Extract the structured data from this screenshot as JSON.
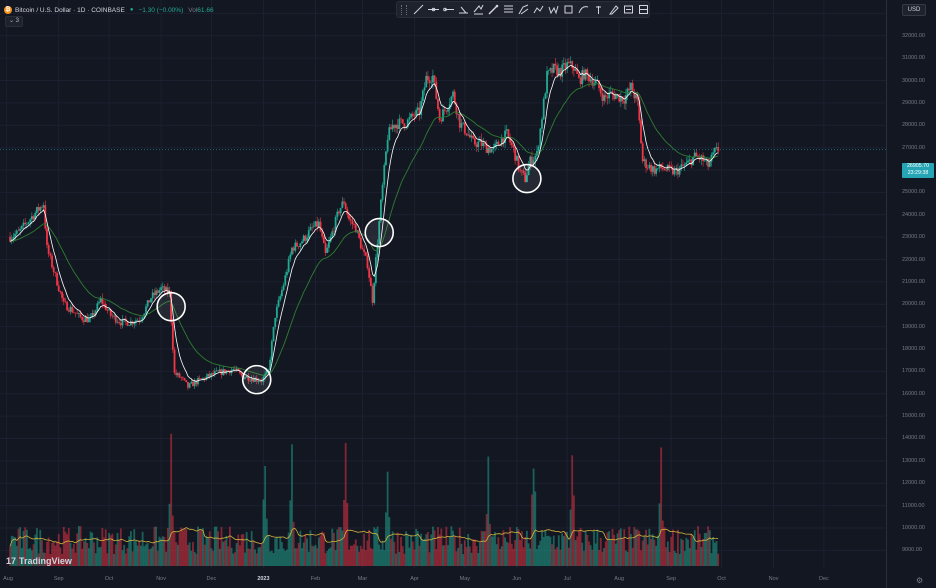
{
  "header": {
    "symbol_icon": "bitcoin-icon",
    "title": "Bitcoin / U.S. Dollar · 1D · COINBASE",
    "change": "−1.30 (−0.00%)",
    "vol_label": "Vol",
    "vol_value": "61.66",
    "indicators_count": "3"
  },
  "toolbar": {
    "tools": [
      "trend-line-icon",
      "horizontal-line-icon",
      "horizontal-ray-icon",
      "info-line-icon",
      "parallel-channel-icon",
      "arrow-icon",
      "fib-retracement-icon",
      "pitchfork-icon",
      "path-icon",
      "elliott-wave-icon",
      "rectangle-icon",
      "curve-icon",
      "anchor-icon",
      "brush-icon",
      "text-note-icon",
      "measure-icon"
    ]
  },
  "currency": "USD",
  "price_tag": {
    "price": "26905.70",
    "countdown": "23:29:38"
  },
  "logo_text": "TradingView",
  "chart_data": {
    "type": "candlestick",
    "symbol": "Bitcoin / U.S. Dollar",
    "interval": "1D",
    "exchange": "COINBASE",
    "y_ticks": [
      33000,
      32000,
      31000,
      30000,
      29000,
      28000,
      27000,
      26000,
      25000,
      24000,
      23000,
      22000,
      21000,
      20000,
      19000,
      18000,
      17000,
      16000,
      15000,
      14000,
      13000,
      12000,
      11000,
      10000,
      9000
    ],
    "y_tick_labels": [
      "33000.00",
      "32000.00",
      "31000.00",
      "30000.00",
      "29000.00",
      "28000.00",
      "27000.00",
      "26000.00",
      "25000.00",
      "24000.00",
      "23000.00",
      "22000.00",
      "21000.00",
      "20000.00",
      "19000.00",
      "18000.00",
      "17000.00",
      "16000.00",
      "15000.00",
      "14000.00",
      "13000.00",
      "12000.00",
      "11000.00",
      "10000.00",
      "9000.00"
    ],
    "ylim": [
      8300,
      33600
    ],
    "x_ticks": [
      {
        "label": "Aug",
        "day": -2
      },
      {
        "label": "Sep",
        "day": 29
      },
      {
        "label": "Oct",
        "day": 59
      },
      {
        "label": "Nov",
        "day": 90
      },
      {
        "label": "Dec",
        "day": 120
      },
      {
        "label": "2023",
        "day": 151,
        "bold": true
      },
      {
        "label": "Feb",
        "day": 182
      },
      {
        "label": "Mar",
        "day": 210
      },
      {
        "label": "Apr",
        "day": 241
      },
      {
        "label": "May",
        "day": 271
      },
      {
        "label": "Jun",
        "day": 302
      },
      {
        "label": "Jul",
        "day": 332
      },
      {
        "label": "Aug",
        "day": 363
      },
      {
        "label": "Sep",
        "day": 394
      },
      {
        "label": "Oct",
        "day": 424
      },
      {
        "label": "Nov",
        "day": 455
      },
      {
        "label": "Dec",
        "day": 485
      }
    ],
    "x_range_days": [
      -6,
      522
    ],
    "last_price": 26905.7,
    "series": [
      {
        "name": "price",
        "kind": "candles",
        "color_up": "#22ab94",
        "color_down": "#f23645"
      },
      {
        "name": "fast-ma",
        "kind": "line",
        "color": "#ffffff"
      },
      {
        "name": "slow-ma",
        "kind": "line",
        "color": "#2e7d32"
      },
      {
        "name": "volume",
        "kind": "bars"
      },
      {
        "name": "volume-ma",
        "kind": "line",
        "color": "#d4b43c"
      }
    ],
    "price_path": [
      [
        -6,
        22800
      ],
      [
        5,
        23200
      ],
      [
        14,
        24000
      ],
      [
        20,
        24500
      ],
      [
        22,
        22500
      ],
      [
        26,
        21500
      ],
      [
        32,
        20000
      ],
      [
        36,
        19800
      ],
      [
        42,
        19400
      ],
      [
        48,
        19300
      ],
      [
        54,
        20200
      ],
      [
        60,
        19500
      ],
      [
        66,
        19200
      ],
      [
        72,
        19200
      ],
      [
        78,
        19400
      ],
      [
        84,
        20300
      ],
      [
        90,
        20700
      ],
      [
        95,
        20500
      ],
      [
        98,
        16900
      ],
      [
        102,
        16700
      ],
      [
        106,
        16300
      ],
      [
        110,
        16500
      ],
      [
        116,
        16700
      ],
      [
        122,
        16900
      ],
      [
        128,
        17000
      ],
      [
        133,
        17100
      ],
      [
        138,
        16800
      ],
      [
        144,
        16700
      ],
      [
        150,
        16600
      ],
      [
        154,
        17000
      ],
      [
        158,
        19500
      ],
      [
        163,
        20900
      ],
      [
        168,
        22500
      ],
      [
        172,
        22700
      ],
      [
        176,
        23000
      ],
      [
        180,
        23400
      ],
      [
        184,
        23600
      ],
      [
        188,
        22200
      ],
      [
        192,
        23200
      ],
      [
        196,
        24200
      ],
      [
        199,
        24600
      ],
      [
        202,
        23800
      ],
      [
        206,
        23400
      ],
      [
        210,
        22400
      ],
      [
        213,
        21800
      ],
      [
        216,
        20200
      ],
      [
        218,
        22000
      ],
      [
        221,
        24500
      ],
      [
        223,
        26000
      ],
      [
        225,
        27500
      ],
      [
        228,
        28000
      ],
      [
        232,
        28100
      ],
      [
        236,
        28100
      ],
      [
        240,
        28400
      ],
      [
        244,
        28600
      ],
      [
        248,
        30100
      ],
      [
        252,
        30200
      ],
      [
        256,
        28300
      ],
      [
        260,
        28800
      ],
      [
        264,
        29400
      ],
      [
        268,
        28100
      ],
      [
        272,
        27700
      ],
      [
        276,
        27200
      ],
      [
        280,
        27200
      ],
      [
        284,
        27000
      ],
      [
        288,
        26900
      ],
      [
        292,
        27300
      ],
      [
        296,
        27600
      ],
      [
        300,
        26900
      ],
      [
        304,
        25900
      ],
      [
        307,
        25600
      ],
      [
        310,
        26400
      ],
      [
        314,
        26700
      ],
      [
        317,
        28400
      ],
      [
        320,
        30200
      ],
      [
        324,
        30500
      ],
      [
        328,
        30400
      ],
      [
        332,
        30700
      ],
      [
        336,
        30600
      ],
      [
        339,
        30000
      ],
      [
        342,
        30300
      ],
      [
        346,
        30100
      ],
      [
        350,
        29800
      ],
      [
        354,
        29200
      ],
      [
        358,
        29400
      ],
      [
        362,
        29300
      ],
      [
        366,
        29200
      ],
      [
        370,
        29700
      ],
      [
        374,
        29000
      ],
      [
        377,
        26400
      ],
      [
        380,
        26200
      ],
      [
        384,
        26000
      ],
      [
        388,
        26100
      ],
      [
        392,
        26000
      ],
      [
        396,
        25900
      ],
      [
        400,
        26100
      ],
      [
        404,
        26300
      ],
      [
        408,
        26600
      ],
      [
        412,
        26500
      ],
      [
        416,
        26200
      ],
      [
        420,
        26800
      ],
      [
        422,
        26900
      ]
    ],
    "circle_markers_days": [
      96,
      147,
      220,
      308
    ],
    "volume_spike_days": [
      96,
      152,
      168,
      200,
      225,
      285,
      312,
      335,
      388
    ]
  }
}
